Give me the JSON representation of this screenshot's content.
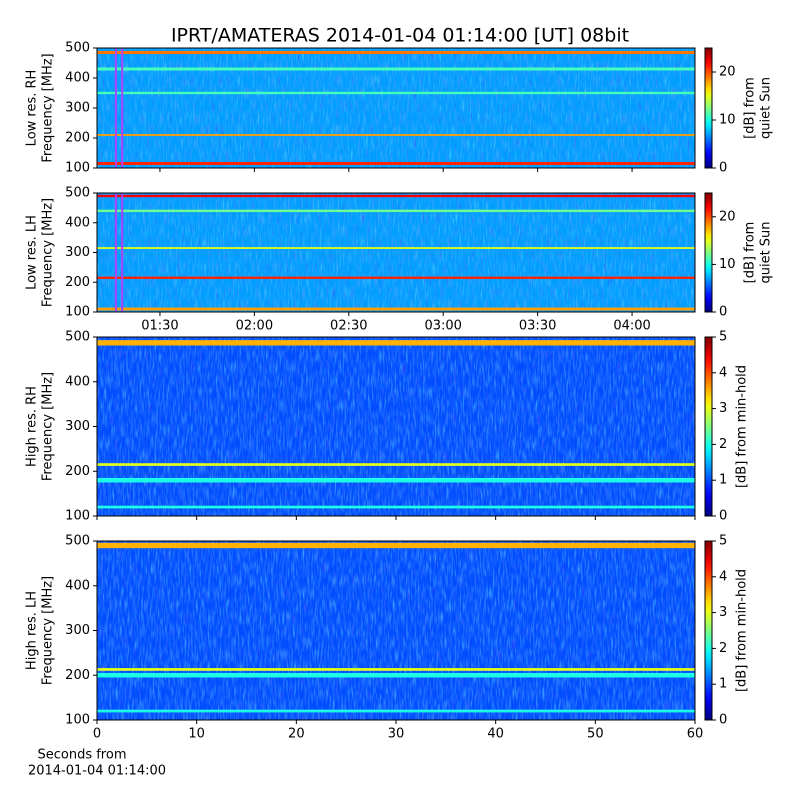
{
  "chart_data": [
    {
      "type": "heatmap",
      "title": "IPRT/AMATERAS 2014-01-04 01:14:00 [UT]   08bit",
      "ylabel": [
        "Low res. RH",
        "Frequency [MHz]"
      ],
      "ylim": [
        100,
        500
      ],
      "yticks": [
        100,
        200,
        300,
        400,
        500
      ],
      "clim": [
        0,
        25
      ],
      "cticks": [
        0,
        10,
        20
      ],
      "colorbar_label": [
        "[dB] from",
        "quiet Sun"
      ],
      "background_level": 7,
      "markers": [
        "01:16",
        "01:18"
      ],
      "bands": [
        {
          "freq": 115,
          "width": 10,
          "level": 21
        },
        {
          "freq": 210,
          "width": 6,
          "level": 18
        },
        {
          "freq": 350,
          "width": 8,
          "level": 11
        },
        {
          "freq": 430,
          "width": 10,
          "level": 11
        },
        {
          "freq": 485,
          "width": 10,
          "level": 19
        }
      ]
    },
    {
      "type": "heatmap",
      "ylabel": [
        "Low res. LH",
        "Frequency [MHz]"
      ],
      "ylim": [
        100,
        500
      ],
      "yticks": [
        100,
        200,
        300,
        400,
        500
      ],
      "clim": [
        0,
        25
      ],
      "cticks": [
        0,
        10,
        20
      ],
      "colorbar_label": [
        "[dB] from",
        "quiet Sun"
      ],
      "background_level": 7,
      "markers": [
        "01:16",
        "01:18"
      ],
      "xlim": [
        "01:10",
        "04:20"
      ],
      "xticks": [
        "01:30",
        "02:00",
        "02:30",
        "03:00",
        "03:30",
        "04:00"
      ],
      "bands": [
        {
          "freq": 110,
          "width": 10,
          "level": 18
        },
        {
          "freq": 215,
          "width": 8,
          "level": 21
        },
        {
          "freq": 315,
          "width": 6,
          "level": 15
        },
        {
          "freq": 440,
          "width": 8,
          "level": 12
        },
        {
          "freq": 490,
          "width": 8,
          "level": 22
        }
      ]
    },
    {
      "type": "heatmap",
      "ylabel": [
        "High res. RH",
        "Frequency [MHz]"
      ],
      "ylim": [
        100,
        500
      ],
      "yticks": [
        100,
        200,
        300,
        400,
        500
      ],
      "clim": [
        0,
        5
      ],
      "cticks": [
        0,
        1,
        2,
        3,
        4,
        5
      ],
      "colorbar_label": [
        "[dB] from min-hold"
      ],
      "background_level": 1,
      "bands": [
        {
          "freq": 120,
          "width": 6,
          "level": 2
        },
        {
          "freq": 180,
          "width": 10,
          "level": 2
        },
        {
          "freq": 215,
          "width": 6,
          "level": 3
        },
        {
          "freq": 487,
          "width": 12,
          "level": 3.5
        }
      ]
    },
    {
      "type": "heatmap",
      "ylabel": [
        "High res. LH",
        "Frequency [MHz]"
      ],
      "ylim": [
        100,
        500
      ],
      "yticks": [
        100,
        200,
        300,
        400,
        500
      ],
      "clim": [
        0,
        5
      ],
      "cticks": [
        0,
        1,
        2,
        3,
        4,
        5
      ],
      "colorbar_label": [
        "[dB] from min-hold"
      ],
      "background_level": 1,
      "xlim": [
        0,
        60
      ],
      "xticks": [
        0,
        10,
        20,
        30,
        40,
        50,
        60
      ],
      "xlabel": [
        "Seconds from",
        "2014-01-04 01:14:00"
      ],
      "bands": [
        {
          "freq": 120,
          "width": 6,
          "level": 2
        },
        {
          "freq": 200,
          "width": 10,
          "level": 2
        },
        {
          "freq": 213,
          "width": 6,
          "level": 3
        },
        {
          "freq": 490,
          "width": 12,
          "level": 3.5
        }
      ]
    }
  ]
}
